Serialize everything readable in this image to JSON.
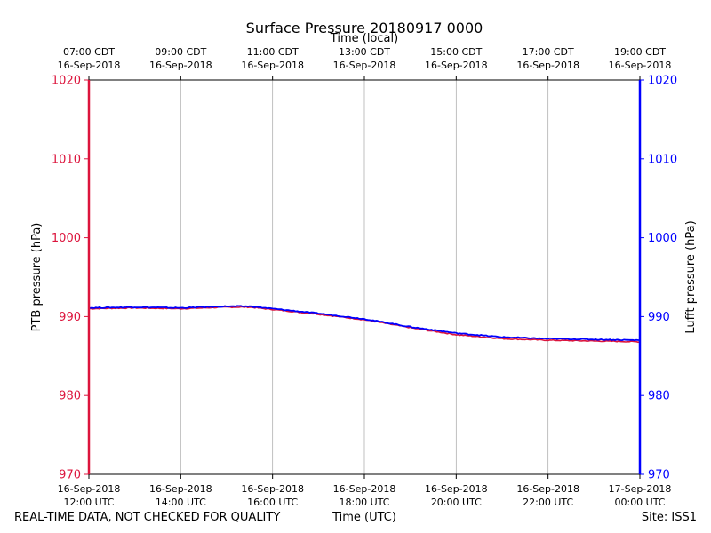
{
  "footer": {
    "quality_note": "REAL-TIME DATA, NOT CHECKED FOR QUALITY",
    "xlabel_bottom": "Time (UTC)",
    "site": "Site: ISS1"
  },
  "colors": {
    "ptb": "#dc143c",
    "lufft": "#0000ff",
    "grid": "#b0b0b0",
    "axis": "#000000"
  },
  "chart_data": {
    "type": "line",
    "title": "Surface Pressure 20180917 0000",
    "xlabel_top": "Time (local)",
    "xlabel_bottom": "Time (UTC)",
    "ylabel_left": "PTB pressure (hPa)",
    "ylabel_right": "Lufft pressure (hPa)",
    "ylim": [
      970,
      1020
    ],
    "yticks": [
      970,
      980,
      990,
      1000,
      1010,
      1020
    ],
    "xlim": [
      "2018-09-16 12:00",
      "2018-09-17 00:00"
    ],
    "grid": "vertical",
    "x_ticks_bottom": [
      {
        "date": "16-Sep-2018",
        "time": "12:00 UTC"
      },
      {
        "date": "16-Sep-2018",
        "time": "14:00 UTC"
      },
      {
        "date": "16-Sep-2018",
        "time": "16:00 UTC"
      },
      {
        "date": "16-Sep-2018",
        "time": "18:00 UTC"
      },
      {
        "date": "16-Sep-2018",
        "time": "20:00 UTC"
      },
      {
        "date": "16-Sep-2018",
        "time": "22:00 UTC"
      },
      {
        "date": "17-Sep-2018",
        "time": "00:00 UTC"
      }
    ],
    "x_ticks_top": [
      {
        "time": "07:00 CDT",
        "date": "16-Sep-2018"
      },
      {
        "time": "09:00 CDT",
        "date": "16-Sep-2018"
      },
      {
        "time": "11:00 CDT",
        "date": "16-Sep-2018"
      },
      {
        "time": "13:00 CDT",
        "date": "16-Sep-2018"
      },
      {
        "time": "15:00 CDT",
        "date": "16-Sep-2018"
      },
      {
        "time": "17:00 CDT",
        "date": "16-Sep-2018"
      },
      {
        "time": "19:00 CDT",
        "date": "16-Sep-2018"
      }
    ],
    "x": [
      "2018-09-16 12:00",
      "2018-09-16 13:00",
      "2018-09-16 14:00",
      "2018-09-16 15:00",
      "2018-09-16 15:30",
      "2018-09-16 16:00",
      "2018-09-16 17:00",
      "2018-09-16 18:00",
      "2018-09-16 19:00",
      "2018-09-16 20:00",
      "2018-09-16 21:00",
      "2018-09-16 22:00",
      "2018-09-16 23:00",
      "2018-09-17 00:00"
    ],
    "series": [
      {
        "axis": "left",
        "values": [
          991.0,
          991.1,
          991.0,
          991.2,
          991.2,
          990.9,
          990.3,
          989.6,
          988.6,
          987.7,
          987.2,
          987.0,
          986.9,
          986.8
        ]
      },
      {
        "axis": "right",
        "values": [
          991.1,
          991.2,
          991.1,
          991.3,
          991.3,
          991.0,
          990.4,
          989.7,
          988.7,
          987.9,
          987.4,
          987.2,
          987.1,
          987.0
        ]
      }
    ]
  }
}
